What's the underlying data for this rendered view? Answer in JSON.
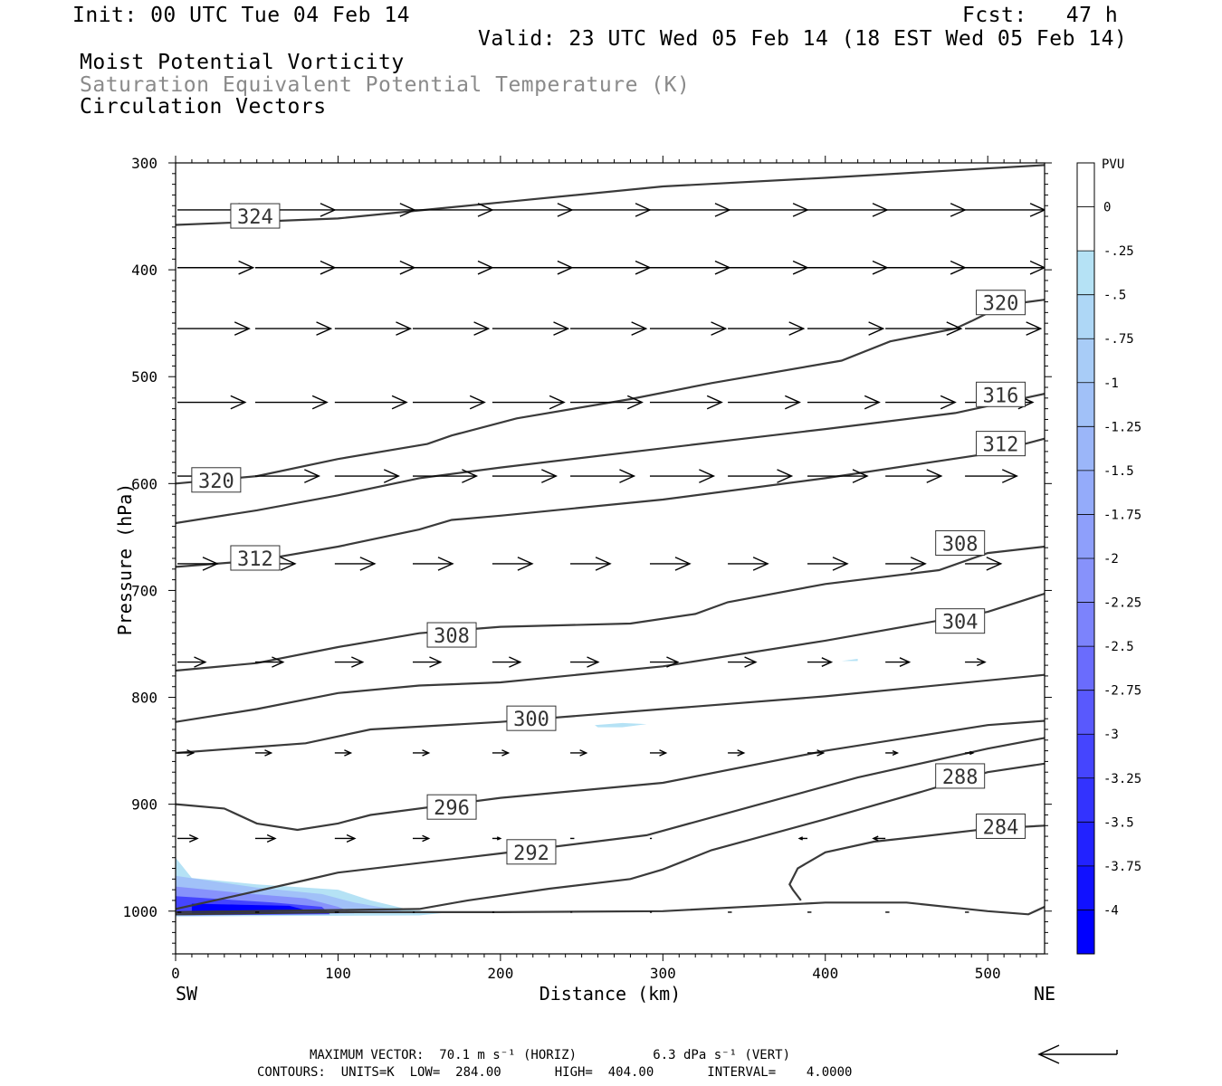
{
  "header": {
    "init": "Init: 00 UTC Tue 04 Feb 14",
    "fcst": "Fcst:   47 h",
    "valid": "Valid: 23 UTC Wed 05 Feb 14 (18 EST Wed 05 Feb 14)",
    "field1": "Moist Potential Vorticity",
    "field2": "Saturation Equivalent Potential Temperature (K)",
    "field3": "Circulation Vectors"
  },
  "footer": {
    "line1": "MAXIMUM VECTOR:  70.1 m s⁻¹ (HORIZ)          6.3 dPa s⁻¹ (VERT)",
    "line2": "CONTOURS:  UNITS=K  LOW=  284.00       HIGH=  404.00       INTERVAL=    4.0000"
  },
  "colors": {
    "contour": "#3a3a3a",
    "vector": "#000000",
    "shade_light": "#b5e2f5",
    "shade_dark": "#0000ff"
  },
  "chart_data": {
    "type": "contour",
    "xlabel": "Distance (km)",
    "ylabel": "Pressure (hPa)",
    "xlim": [
      0,
      535
    ],
    "ylim": [
      1040,
      300
    ],
    "x_ticks": [
      "0",
      "100",
      "200",
      "300",
      "400",
      "500"
    ],
    "y_ticks": [
      "300",
      "400",
      "500",
      "600",
      "700",
      "800",
      "900",
      "1000"
    ],
    "x_end_labels": {
      "left": "SW",
      "right": "NE"
    },
    "colorbar": {
      "title": "PVU",
      "labels": [
        "0",
        "-.25",
        "-.5",
        "-.75",
        "-1",
        "-1.25",
        "-1.5",
        "-1.75",
        "-2",
        "-2.25",
        "-2.5",
        "-2.75",
        "-3",
        "-3.25",
        "-3.5",
        "-3.75",
        "-4"
      ],
      "colors": [
        "#ffffff",
        "#ffffff",
        "#b5e2f5",
        "#aed7f6",
        "#a8ccf7",
        "#a1c1f8",
        "#9bb6f9",
        "#94abfa",
        "#8e9ffb",
        "#8792fb",
        "#7c83fc",
        "#6a6cfd",
        "#5959fd",
        "#4545fe",
        "#3333fe",
        "#2222ff",
        "#1111ff",
        "#0000ff"
      ]
    },
    "contours": [
      {
        "label": "324",
        "points": [
          [
            0,
            358
          ],
          [
            100,
            352
          ],
          [
            200,
            337
          ],
          [
            300,
            322
          ],
          [
            400,
            314
          ],
          [
            535,
            302
          ]
        ]
      },
      {
        "label": "320",
        "points": [
          [
            0,
            600
          ],
          [
            50,
            593
          ],
          [
            100,
            577
          ],
          [
            155,
            563
          ],
          [
            170,
            555
          ],
          [
            210,
            539
          ],
          [
            280,
            521
          ],
          [
            330,
            506
          ],
          [
            410,
            485
          ],
          [
            440,
            467
          ],
          [
            480,
            455
          ],
          [
            490,
            448
          ],
          [
            510,
            433
          ],
          [
            535,
            428
          ]
        ]
      },
      {
        "label": "316",
        "points": [
          [
            0,
            637
          ],
          [
            50,
            625
          ],
          [
            100,
            611
          ],
          [
            150,
            595
          ],
          [
            200,
            585
          ],
          [
            300,
            567
          ],
          [
            400,
            549
          ],
          [
            480,
            534
          ],
          [
            535,
            516
          ]
        ]
      },
      {
        "label": "312",
        "points": [
          [
            0,
            678
          ],
          [
            50,
            672
          ],
          [
            100,
            659
          ],
          [
            150,
            643
          ],
          [
            170,
            634
          ],
          [
            200,
            630
          ],
          [
            300,
            615
          ],
          [
            400,
            595
          ],
          [
            500,
            572
          ],
          [
            535,
            558
          ]
        ]
      },
      {
        "label": "308",
        "points": [
          [
            0,
            775
          ],
          [
            50,
            768
          ],
          [
            100,
            753
          ],
          [
            150,
            740
          ],
          [
            200,
            734
          ],
          [
            280,
            731
          ],
          [
            320,
            722
          ],
          [
            340,
            711
          ],
          [
            400,
            694
          ],
          [
            470,
            681
          ],
          [
            500,
            665
          ],
          [
            535,
            659
          ]
        ]
      },
      {
        "label": "304",
        "points": [
          [
            0,
            823
          ],
          [
            50,
            811
          ],
          [
            100,
            796
          ],
          [
            150,
            789
          ],
          [
            200,
            786
          ],
          [
            300,
            771
          ],
          [
            400,
            747
          ],
          [
            500,
            720
          ],
          [
            535,
            703
          ]
        ]
      },
      {
        "label": "300",
        "points": [
          [
            0,
            852
          ],
          [
            80,
            843
          ],
          [
            120,
            830
          ],
          [
            200,
            823
          ],
          [
            300,
            811
          ],
          [
            400,
            799
          ],
          [
            535,
            779
          ]
        ]
      },
      {
        "label": "296",
        "points": [
          [
            0,
            900
          ],
          [
            30,
            904
          ],
          [
            50,
            918
          ],
          [
            75,
            924
          ],
          [
            100,
            918
          ],
          [
            120,
            910
          ],
          [
            200,
            894
          ],
          [
            300,
            880
          ],
          [
            400,
            850
          ],
          [
            500,
            826
          ],
          [
            535,
            822
          ]
        ]
      },
      {
        "label": "292",
        "points": [
          [
            0,
            998
          ],
          [
            30,
            988
          ],
          [
            80,
            971
          ],
          [
            100,
            964
          ],
          [
            200,
            946
          ],
          [
            290,
            929
          ],
          [
            350,
            904
          ],
          [
            420,
            875
          ],
          [
            500,
            848
          ],
          [
            535,
            838
          ]
        ]
      },
      {
        "label": "288",
        "points": [
          [
            0,
            1001
          ],
          [
            150,
            998
          ],
          [
            180,
            990
          ],
          [
            230,
            979
          ],
          [
            280,
            970
          ],
          [
            300,
            961
          ],
          [
            330,
            943
          ],
          [
            400,
            914
          ],
          [
            460,
            888
          ],
          [
            500,
            870
          ],
          [
            535,
            862
          ]
        ]
      },
      {
        "label": "284",
        "points": [
          [
            385,
            990
          ],
          [
            380,
            980
          ],
          [
            378,
            975
          ],
          [
            383,
            960
          ],
          [
            400,
            945
          ],
          [
            430,
            935
          ],
          [
            460,
            930
          ],
          [
            500,
            923
          ],
          [
            535,
            920
          ]
        ]
      },
      {
        "label": "",
        "points": [
          [
            0,
            1003
          ],
          [
            100,
            1001
          ],
          [
            200,
            1001
          ],
          [
            300,
            1000
          ],
          [
            400,
            992
          ],
          [
            450,
            992
          ],
          [
            500,
            1000
          ],
          [
            525,
            1003
          ],
          [
            535,
            996
          ]
        ]
      }
    ],
    "contour_labels": [
      {
        "text": "324",
        "x": 49,
        "p": 350
      },
      {
        "text": "320",
        "x": 508,
        "p": 431
      },
      {
        "text": "316",
        "x": 508,
        "p": 517
      },
      {
        "text": "312",
        "x": 508,
        "p": 563
      },
      {
        "text": "320",
        "x": 25,
        "p": 597
      },
      {
        "text": "308",
        "x": 483,
        "p": 656
      },
      {
        "text": "312",
        "x": 49,
        "p": 670
      },
      {
        "text": "304",
        "x": 483,
        "p": 729
      },
      {
        "text": "308",
        "x": 170,
        "p": 742
      },
      {
        "text": "300",
        "x": 219,
        "p": 820
      },
      {
        "text": "288",
        "x": 483,
        "p": 874
      },
      {
        "text": "296",
        "x": 170,
        "p": 903
      },
      {
        "text": "284",
        "x": 508,
        "p": 921
      },
      {
        "text": "292",
        "x": 219,
        "p": 945
      }
    ],
    "shaded_regions": [
      {
        "level": "-.25",
        "points": [
          [
            0,
            950
          ],
          [
            10,
            969
          ],
          [
            50,
            975
          ],
          [
            100,
            980
          ],
          [
            120,
            990
          ],
          [
            145,
            999
          ],
          [
            170,
            1001
          ],
          [
            150,
            1004
          ],
          [
            0,
            1005
          ]
        ]
      },
      {
        "level": "-.25",
        "points": [
          [
            258,
            826
          ],
          [
            275,
            824
          ],
          [
            290,
            825
          ],
          [
            275,
            828
          ],
          [
            260,
            828
          ]
        ]
      },
      {
        "level": "-.25",
        "points": [
          [
            410,
            766
          ],
          [
            420,
            764
          ],
          [
            420,
            766
          ]
        ]
      },
      {
        "level": "-1",
        "points": [
          [
            0,
            967
          ],
          [
            50,
            978
          ],
          [
            90,
            984
          ],
          [
            110,
            992
          ],
          [
            140,
            1000
          ],
          [
            0,
            1004
          ]
        ]
      },
      {
        "level": "-2",
        "points": [
          [
            0,
            977
          ],
          [
            40,
            983
          ],
          [
            80,
            988
          ],
          [
            100,
            996
          ],
          [
            110,
            1002
          ],
          [
            0,
            1004
          ]
        ]
      },
      {
        "level": "-3",
        "points": [
          [
            0,
            986
          ],
          [
            30,
            989
          ],
          [
            60,
            992
          ],
          [
            90,
            996
          ],
          [
            95,
            1003
          ],
          [
            0,
            1004
          ]
        ]
      },
      {
        "level": "-4",
        "points": [
          [
            10,
            993
          ],
          [
            40,
            994
          ],
          [
            70,
            995
          ],
          [
            80,
            999
          ],
          [
            50,
            1002
          ],
          [
            10,
            1002
          ]
        ]
      }
    ],
    "vector_columns_km": [
      0,
      49,
      98,
      146,
      195,
      243,
      292,
      340,
      389,
      437,
      486,
      535
    ],
    "vector_rows": [
      {
        "p": 344,
        "u": [
          38,
          40,
          40,
          40,
          40,
          40,
          40,
          40,
          40,
          40,
          40,
          40
        ],
        "w": [
          0,
          0,
          0,
          0,
          0,
          0,
          0,
          0,
          0,
          0,
          0,
          0
        ]
      },
      {
        "p": 398,
        "u": [
          38,
          40,
          40,
          40,
          40,
          40,
          40,
          40,
          40,
          40,
          40,
          40
        ],
        "w": [
          0,
          0,
          0,
          0,
          0,
          0,
          0,
          0,
          0,
          0,
          0,
          0
        ]
      },
      {
        "p": 455,
        "u": [
          36,
          38,
          38,
          38,
          38,
          38,
          38,
          38,
          38,
          38,
          38,
          38
        ],
        "w": [
          0,
          0,
          0,
          0,
          0,
          0,
          0,
          0,
          0,
          0,
          0,
          0
        ]
      },
      {
        "p": 524,
        "u": [
          34,
          36,
          36,
          36,
          36,
          36,
          36,
          36,
          36,
          35,
          34,
          0
        ],
        "w": [
          0,
          0,
          0,
          0,
          0,
          0,
          0,
          0,
          0,
          0,
          0,
          0
        ]
      },
      {
        "p": 593,
        "u": [
          30,
          32,
          32,
          32,
          32,
          32,
          32,
          32,
          30,
          28,
          26,
          0
        ],
        "w": [
          0,
          0,
          0,
          0,
          0,
          0,
          0,
          0,
          0,
          0,
          0,
          0
        ]
      },
      {
        "p": 675,
        "u": [
          20,
          20,
          20,
          20,
          20,
          20,
          20,
          20,
          20,
          20,
          18,
          0
        ],
        "w": [
          0,
          0,
          0,
          0,
          0,
          0,
          0,
          0,
          0,
          0,
          0,
          0
        ]
      },
      {
        "p": 767,
        "u": [
          14,
          14,
          14,
          14,
          14,
          14,
          14,
          14,
          12,
          12,
          10,
          0
        ],
        "w": [
          0,
          0,
          0,
          0,
          0,
          0,
          0,
          0,
          0,
          0,
          0,
          0
        ]
      },
      {
        "p": 852,
        "u": [
          8,
          8,
          8,
          8,
          8,
          8,
          8,
          8,
          8,
          6,
          4,
          2
        ],
        "w": [
          0,
          0,
          0,
          0,
          0,
          0,
          0,
          0,
          0,
          0,
          0,
          0
        ]
      },
      {
        "p": 932,
        "u": [
          10,
          10,
          10,
          8,
          4,
          2,
          1,
          0,
          -4,
          -6,
          0,
          0
        ],
        "w": [
          0,
          0,
          0,
          0,
          0,
          0,
          0,
          0,
          0,
          0,
          0,
          0
        ]
      },
      {
        "p": 1001,
        "u": [
          2,
          2,
          2,
          1,
          1,
          1,
          1,
          2,
          2,
          2,
          2,
          0
        ],
        "w": [
          0,
          0,
          0,
          0,
          0,
          0,
          0,
          0,
          0,
          0,
          0,
          0
        ]
      }
    ],
    "reference_vector": "70.1 m s⁻¹"
  }
}
